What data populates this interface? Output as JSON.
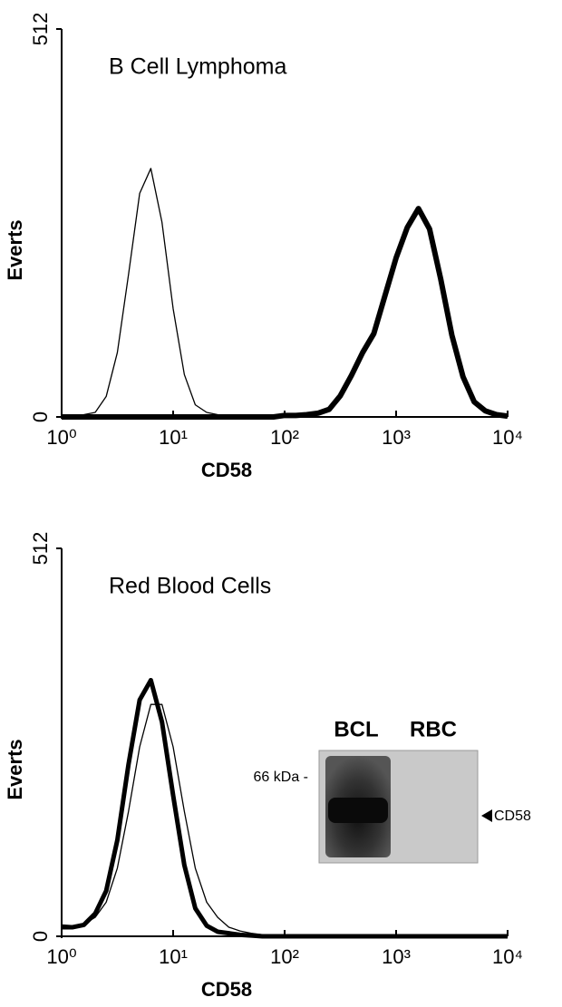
{
  "chart_data": [
    {
      "type": "line",
      "title": "B Cell Lymphoma",
      "xlabel": "CD58",
      "ylabel": "Everts",
      "log_x": true,
      "xlim": [
        1,
        10000
      ],
      "ylim": [
        0,
        512
      ],
      "xticks": [
        {
          "value": 1,
          "label": "10⁰"
        },
        {
          "value": 10,
          "label": "10¹"
        },
        {
          "value": 100,
          "label": "10²"
        },
        {
          "value": 1000,
          "label": "10³"
        },
        {
          "value": 10000,
          "label": "10⁴"
        }
      ],
      "yticks": [
        0,
        512
      ],
      "x": [
        1,
        1.26,
        1.58,
        2,
        2.51,
        3.16,
        3.98,
        5.01,
        6.31,
        7.94,
        10,
        12.6,
        15.8,
        20,
        25.1,
        31.6,
        39.8,
        50.1,
        63.1,
        79.4,
        100,
        126,
        158,
        200,
        251,
        316,
        398,
        501,
        631,
        794,
        1000,
        1259,
        1585,
        1995,
        2512,
        3162,
        3981,
        5012,
        6310,
        7943,
        10000
      ],
      "series": [
        {
          "color": "#000000",
          "line_width": 1.3,
          "values": [
            0,
            2,
            3,
            6,
            27,
            85,
            188,
            295,
            328,
            257,
            143,
            56,
            16,
            6,
            3,
            2,
            1,
            0,
            0,
            0,
            0,
            0,
            0,
            0,
            0,
            0,
            0,
            0,
            0,
            0,
            0,
            0,
            0,
            0,
            0,
            0,
            0,
            0,
            0,
            0,
            0
          ]
        },
        {
          "color": "#000000",
          "line_width": 6,
          "values": [
            0,
            0,
            0,
            0,
            0,
            0,
            0,
            0,
            0,
            0,
            0,
            0,
            0,
            0,
            0,
            0,
            0,
            0,
            0,
            0,
            2,
            2,
            3,
            5,
            10,
            28,
            55,
            85,
            110,
            160,
            210,
            250,
            275,
            248,
            182,
            108,
            53,
            20,
            8,
            3,
            1
          ]
        }
      ]
    },
    {
      "type": "line",
      "title": "Red Blood Cells",
      "xlabel": "CD58",
      "ylabel": "Everts",
      "log_x": true,
      "xlim": [
        1,
        10000
      ],
      "ylim": [
        0,
        512
      ],
      "xticks": [
        {
          "value": 1,
          "label": "10⁰"
        },
        {
          "value": 10,
          "label": "10¹"
        },
        {
          "value": 100,
          "label": "10²"
        },
        {
          "value": 1000,
          "label": "10³"
        },
        {
          "value": 10000,
          "label": "10⁴"
        }
      ],
      "yticks": [
        0,
        512
      ],
      "x": [
        1,
        1.26,
        1.58,
        2,
        2.51,
        3.16,
        3.98,
        5.01,
        6.31,
        7.94,
        10,
        12.6,
        15.8,
        20,
        25.1,
        31.6,
        39.8,
        50.1,
        63.1,
        79.4,
        100,
        126,
        158,
        200,
        251,
        316,
        398,
        501,
        631,
        794,
        1000,
        1259,
        1585,
        1995,
        2512,
        3162,
        3981,
        5012,
        6310,
        7943,
        10000
      ],
      "series": [
        {
          "color": "#000000",
          "line_width": 1.3,
          "values": [
            15,
            14,
            16,
            25,
            45,
            90,
            165,
            250,
            306,
            306,
            250,
            165,
            90,
            45,
            25,
            12,
            7,
            4,
            2,
            1,
            0,
            0,
            0,
            0,
            0,
            0,
            0,
            0,
            0,
            0,
            0,
            0,
            0,
            0,
            0,
            0,
            0,
            0,
            0,
            0,
            0
          ]
        },
        {
          "color": "#000000",
          "line_width": 5,
          "values": [
            12,
            12,
            15,
            30,
            60,
            127,
            227,
            312,
            338,
            283,
            186,
            94,
            37,
            14,
            6,
            4,
            2,
            1,
            0,
            0,
            0,
            0,
            0,
            0,
            0,
            0,
            0,
            0,
            0,
            0,
            0,
            0,
            0,
            0,
            0,
            0,
            0,
            0,
            0,
            0,
            0
          ]
        }
      ],
      "inset": {
        "lanes": [
          "BCL",
          "RBC"
        ],
        "marker": "66 kDa -",
        "band_label": "CD58"
      }
    }
  ]
}
